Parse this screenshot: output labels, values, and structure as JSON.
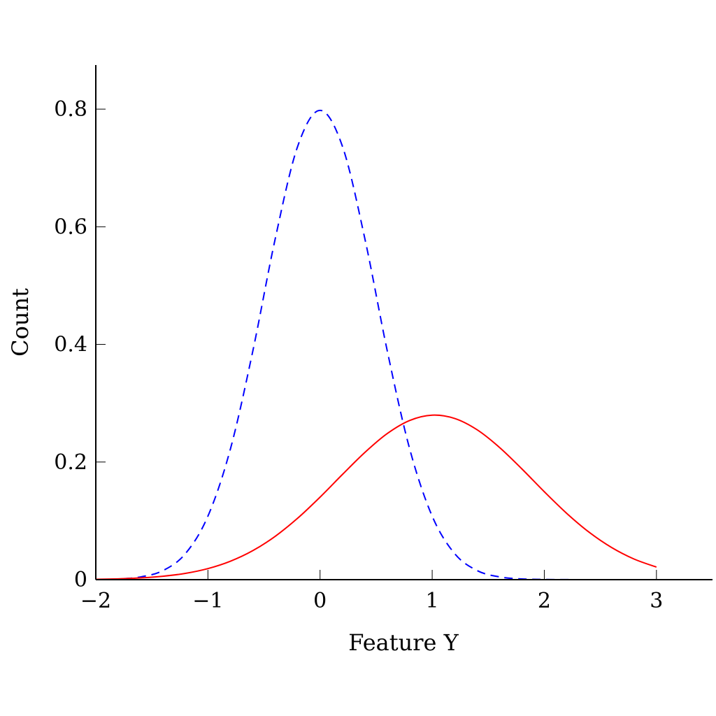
{
  "chart_data": {
    "type": "line",
    "title": "",
    "xlabel": "Feature Y",
    "ylabel": "Count",
    "xlim": [
      -2,
      3.5
    ],
    "ylim": [
      0,
      0.875
    ],
    "xticks": [
      -2,
      -1,
      0,
      1,
      2,
      3
    ],
    "xtick_labels": [
      "−2",
      "−1",
      "0",
      "1",
      "2",
      "3"
    ],
    "yticks": [
      0,
      0.2,
      0.4,
      0.6,
      0.8
    ],
    "ytick_labels": [
      "0",
      "0.2",
      "0.4",
      "0.6",
      "0.8"
    ],
    "grid": false,
    "series": [
      {
        "style": "dashed",
        "color": "#0000ff",
        "x": [
          -2.0,
          -1.8,
          -1.6,
          -1.4,
          -1.2,
          -1.0,
          -0.8,
          -0.6,
          -0.4,
          -0.2,
          0.0,
          0.2,
          0.4,
          0.6,
          0.8,
          1.0,
          1.2,
          1.4,
          1.6,
          1.8,
          2.0,
          2.2,
          2.4,
          2.6,
          2.8,
          3.0
        ],
        "values": [
          0.0003,
          0.0012,
          0.0047,
          0.0155,
          0.0444,
          0.108,
          0.2218,
          0.3884,
          0.5794,
          0.7365,
          0.7979,
          0.7365,
          0.5794,
          0.3884,
          0.2218,
          0.108,
          0.0444,
          0.0155,
          0.0047,
          0.0012,
          0.0003,
          0.0001,
          0.0,
          0.0,
          0.0,
          0.0
        ]
      },
      {
        "style": "solid",
        "color": "#ff0000",
        "x": [
          -2.0,
          -1.8,
          -1.6,
          -1.4,
          -1.2,
          -1.0,
          -0.8,
          -0.6,
          -0.4,
          -0.2,
          0.0,
          0.2,
          0.4,
          0.6,
          0.8,
          1.0,
          1.2,
          1.4,
          1.6,
          1.8,
          2.0,
          2.2,
          2.4,
          2.6,
          2.8,
          3.0
        ],
        "values": [
          0.0006,
          0.0014,
          0.0029,
          0.0058,
          0.0107,
          0.0188,
          0.0313,
          0.0493,
          0.0737,
          0.1044,
          0.1403,
          0.1789,
          0.2164,
          0.2485,
          0.2707,
          0.2797,
          0.2741,
          0.2549,
          0.2249,
          0.1883,
          0.1495,
          0.1127,
          0.0806,
          0.0547,
          0.0351,
          0.0214
        ]
      }
    ]
  }
}
